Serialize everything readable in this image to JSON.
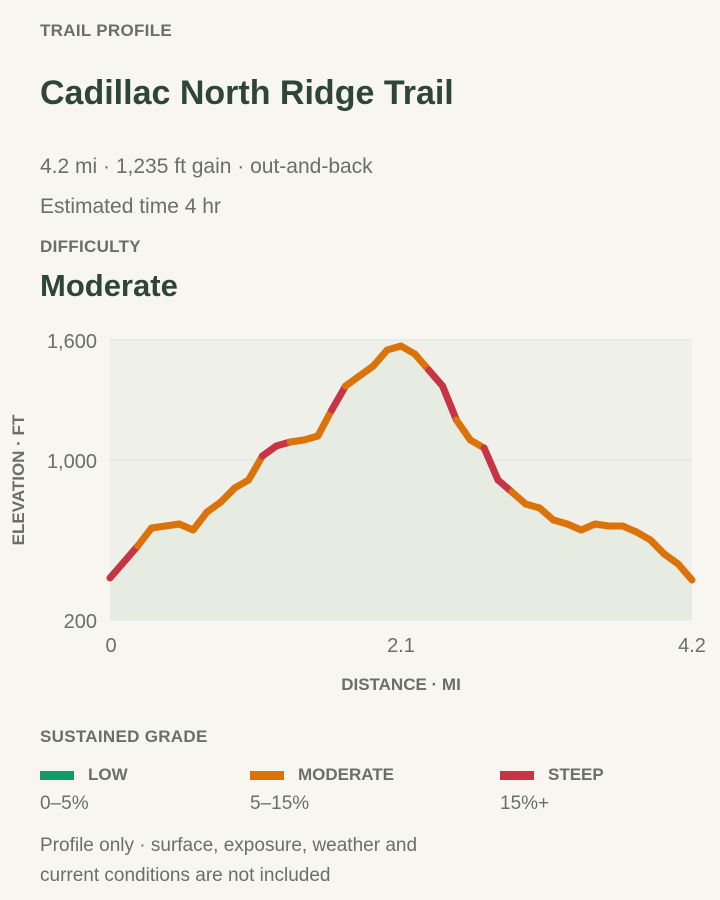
{
  "header": {
    "kicker": "TRAIL PROFILE",
    "title": "Cadillac North Ridge Trail",
    "stats": "4.2 mi · 1,235 ft gain · out-and-back",
    "time": "Estimated time 4 hr",
    "difficulty_label": "DIFFICULTY",
    "difficulty_value": "Moderate"
  },
  "chart_data": {
    "type": "line",
    "xlabel": "DISTANCE · MI",
    "ylabel": "ELEVATION · FT",
    "x_ticks": [
      "0",
      "2.1",
      "4.2"
    ],
    "y_ticks": [
      "1,600",
      "1,000",
      "200"
    ],
    "ylim": [
      200,
      1600
    ],
    "xlim": [
      0,
      4.2
    ],
    "y_scale": "piecewise",
    "grid": true,
    "area_fill": true,
    "colors": {
      "low": "#129a6d",
      "moderate": "#d9730a",
      "steep": "#c73545"
    },
    "series": [
      {
        "x": [
          0,
          0.1,
          0.2,
          0.3,
          0.4,
          0.5,
          0.6,
          0.7,
          0.8,
          0.9,
          1.0,
          1.1,
          1.2,
          1.3,
          1.4,
          1.5,
          1.6,
          1.7,
          1.8,
          1.9,
          2.0,
          2.1,
          2.2,
          2.3,
          2.4,
          2.5,
          2.6,
          2.7,
          2.8,
          2.9,
          3.0,
          3.1,
          3.2,
          3.3,
          3.4,
          3.5,
          3.6,
          3.7,
          3.8,
          3.9,
          4.0,
          4.1,
          4.2
        ],
        "y": [
          410,
          490,
          570,
          660,
          670,
          680,
          650,
          740,
          790,
          860,
          900,
          1020,
          1070,
          1090,
          1100,
          1120,
          1250,
          1370,
          1420,
          1470,
          1550,
          1570,
          1530,
          1450,
          1370,
          1200,
          1100,
          1060,
          900,
          840,
          780,
          760,
          700,
          680,
          650,
          680,
          670,
          670,
          640,
          600,
          530,
          480,
          400
        ],
        "grade": [
          "steep",
          "steep",
          "moderate",
          "moderate",
          "moderate",
          "moderate",
          "moderate",
          "moderate",
          "moderate",
          "moderate",
          "moderate",
          "steep",
          "steep",
          "moderate",
          "moderate",
          "moderate",
          "steep",
          "moderate",
          "moderate",
          "moderate",
          "moderate",
          "moderate",
          "moderate",
          "steep",
          "steep",
          "moderate",
          "moderate",
          "steep",
          "steep",
          "moderate",
          "moderate",
          "moderate",
          "moderate",
          "moderate",
          "moderate",
          "moderate",
          "moderate",
          "moderate",
          "moderate",
          "moderate",
          "moderate",
          "moderate"
        ]
      }
    ]
  },
  "legend": {
    "title": "SUSTAINED GRADE",
    "items": [
      {
        "label": "LOW",
        "range": "0–5%",
        "color": "#129a6d"
      },
      {
        "label": "MODERATE",
        "range": "5–15%",
        "color": "#d9730a"
      },
      {
        "label": "STEEP",
        "range": "15%+",
        "color": "#c73545"
      }
    ]
  },
  "footnote": "Profile only · surface, exposure, weather and current conditions are not included"
}
